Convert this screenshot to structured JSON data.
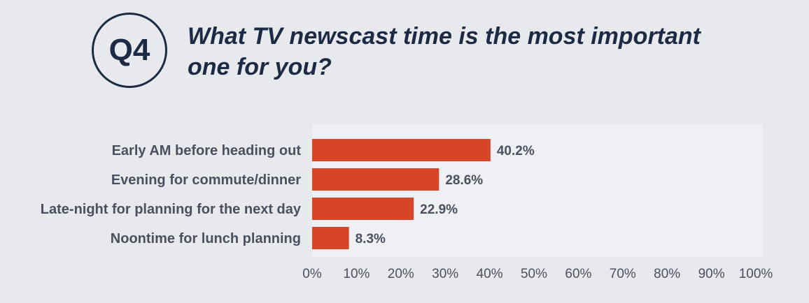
{
  "badge": {
    "label": "Q4"
  },
  "question": {
    "line1": "What TV newscast time is the most important",
    "line2": "one for you?"
  },
  "colors": {
    "bar": "#d64526",
    "plot_background": "#eff0f3",
    "text": "#4a5060",
    "heading": "#1c2b45"
  },
  "chart_data": {
    "type": "bar",
    "orientation": "horizontal",
    "categories": [
      "Early AM  before heading out",
      "Evening for commute/dinner",
      "Late-night for planning for the next day",
      "Noontime for lunch planning"
    ],
    "values": [
      40.2,
      28.6,
      22.9,
      8.3
    ],
    "value_labels": [
      "40.2%",
      "28.6%",
      "22.9%",
      "8.3%"
    ],
    "xlim": [
      0,
      100
    ],
    "xticks": [
      "0%",
      "10%",
      "20%",
      "30%",
      "40%",
      "50%",
      "60%",
      "70%",
      "80%",
      "90%",
      "100%"
    ],
    "grid": false,
    "legend": "none"
  }
}
